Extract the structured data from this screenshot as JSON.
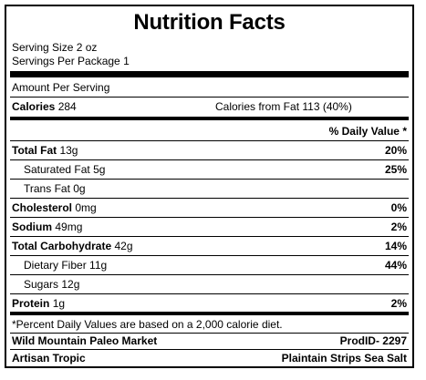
{
  "title": "Nutrition Facts",
  "serving_size": "Serving Size 2 oz",
  "servings_per_package": "Servings Per Package 1",
  "amount_per_serving": "Amount Per Serving",
  "calories_label": "Calories",
  "calories_value": "284",
  "calories_from_fat": "Calories from Fat 113 (40%)",
  "daily_value_header": "% Daily Value *",
  "rows": [
    {
      "label": "Total Fat",
      "amount": "13g",
      "dv": "20%"
    },
    {
      "label": "Saturated Fat",
      "amount": "5g",
      "dv": "25%"
    },
    {
      "label": "Trans Fat",
      "amount": "0g",
      "dv": ""
    },
    {
      "label": "Cholesterol",
      "amount": "0mg",
      "dv": "0%"
    },
    {
      "label": "Sodium",
      "amount": "49mg",
      "dv": "2%"
    },
    {
      "label": "Total Carbohydrate",
      "amount": "42g",
      "dv": "14%"
    },
    {
      "label": "Dietary Fiber",
      "amount": "11g",
      "dv": "44%"
    },
    {
      "label": "Sugars",
      "amount": "12g",
      "dv": ""
    },
    {
      "label": "Protein",
      "amount": "1g",
      "dv": "2%"
    }
  ],
  "footnote": "*Percent Daily Values are based on a 2,000 calorie diet.",
  "brand": "Wild Mountain Paleo Market",
  "prod_id": "ProdID- 2297",
  "sub_brand": "Artisan Tropic",
  "product_name": "Plaintain Strips Sea Salt"
}
